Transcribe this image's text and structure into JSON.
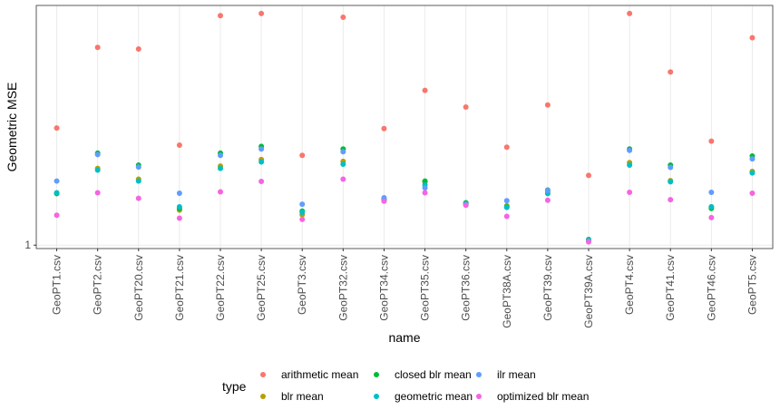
{
  "chart_data": {
    "type": "scatter",
    "xlabel": "name",
    "ylabel": "Geometric MSE",
    "y_ticks": [
      {
        "value": 1,
        "label": "1"
      }
    ],
    "ylim": [
      0.96,
      17.5
    ],
    "ylog": true,
    "grid": true,
    "legend_position": "bottom",
    "legend_title": "type",
    "categories": [
      "GeoPT1.csv",
      "GeoPT2.csv",
      "GeoPT20.csv",
      "GeoPT21.csv",
      "GeoPT22.csv",
      "GeoPT25.csv",
      "GeoPT3.csv",
      "GeoPT32.csv",
      "GeoPT34.csv",
      "GeoPT35.csv",
      "GeoPT36.csv",
      "GeoPT38A.csv",
      "GeoPT39.csv",
      "GeoPT39A.csv",
      "GeoPT4.csv",
      "GeoPT41.csv",
      "GeoPT46.csv",
      "GeoPT5.csv"
    ],
    "series": [
      {
        "name": "arithmetic mean",
        "color": "#F8766D",
        "values": [
          4.05,
          10.6,
          10.4,
          3.3,
          15.5,
          15.9,
          2.92,
          15.2,
          4.02,
          6.35,
          5.2,
          3.22,
          5.33,
          2.3,
          15.9,
          7.9,
          3.46,
          11.9
        ]
      },
      {
        "name": "blr mean",
        "color": "#B79F00",
        "values": [
          1.86,
          2.5,
          2.2,
          1.52,
          2.57,
          2.78,
          1.44,
          2.72,
          1.7,
          2.12,
          1.64,
          1.6,
          1.88,
          1.06,
          2.68,
          2.16,
          1.58,
          2.41
        ]
      },
      {
        "name": "closed blr mean",
        "color": "#00BA38",
        "values": [
          1.85,
          3.0,
          2.6,
          1.55,
          3.0,
          3.25,
          1.5,
          3.15,
          1.72,
          2.15,
          1.66,
          1.58,
          1.93,
          1.07,
          3.15,
          2.6,
          1.55,
          2.9
        ]
      },
      {
        "name": "geometric mean",
        "color": "#00BFC4",
        "values": [
          1.87,
          2.45,
          2.15,
          1.58,
          2.5,
          2.7,
          1.48,
          2.63,
          1.73,
          2.05,
          1.64,
          1.57,
          1.85,
          1.06,
          2.6,
          2.13,
          1.58,
          2.37
        ]
      },
      {
        "name": "ilr mean",
        "color": "#619CFF",
        "values": [
          2.15,
          2.95,
          2.54,
          1.86,
          2.92,
          3.15,
          1.63,
          3.05,
          1.76,
          1.98,
          1.62,
          1.7,
          1.92,
          1.05,
          3.1,
          2.53,
          1.88,
          2.8
        ]
      },
      {
        "name": "optimized blr mean",
        "color": "#F564E3",
        "values": [
          1.43,
          1.87,
          1.75,
          1.38,
          1.89,
          2.14,
          1.36,
          2.2,
          1.69,
          1.87,
          1.61,
          1.41,
          1.71,
          1.04,
          1.88,
          1.72,
          1.39,
          1.86
        ]
      }
    ]
  }
}
